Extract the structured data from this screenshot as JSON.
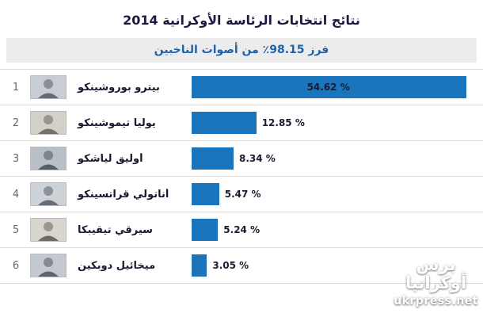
{
  "title": "نتائج انتخابات الرئاسة الأوكرانية 2014",
  "subtitle": "فرز 98.15٪ من أصوات الناخبين",
  "rows": [
    {
      "rank": "1",
      "name": "بيترو بوروشينكو",
      "percent_label": "54.62 %"
    },
    {
      "rank": "2",
      "name": "يوليا تيموشينكو",
      "percent_label": "12.85 %"
    },
    {
      "rank": "3",
      "name": "أوليق لياشكو",
      "percent_label": "8.34 %"
    },
    {
      "rank": "4",
      "name": "أناتولي قراتسينكو",
      "percent_label": "5.47 %"
    },
    {
      "rank": "5",
      "name": "سيرقي تيقيبكا",
      "percent_label": "5.24 %"
    },
    {
      "rank": "6",
      "name": "ميخائيل دوبكين",
      "percent_label": "3.05 %"
    }
  ],
  "watermark": {
    "logo_line1": "برس",
    "logo_line2": "أوكرانيا",
    "site": "ukrpress.net"
  },
  "colors": {
    "bar": "#1a75bc",
    "subtitle_bg": "#ececec",
    "subtitle_text": "#1e63ac",
    "title_text": "#1b1940"
  },
  "chart_data": {
    "type": "bar",
    "orientation": "horizontal",
    "title": "نتائج انتخابات الرئاسة الأوكرانية 2014",
    "subtitle": "فرز 98.15٪ من أصوات الناخبين",
    "categories": [
      "بيترو بوروشينكو",
      "يوليا تيموشينكو",
      "أوليق لياشكو",
      "أناتولي قراتسينكو",
      "سيرقي تيقيبكا",
      "ميخائيل دوبكين"
    ],
    "values": [
      54.62,
      12.85,
      8.34,
      5.47,
      5.24,
      3.05
    ],
    "unit": "%",
    "xlim": [
      0,
      56
    ],
    "grid": "row-separators",
    "legend": "none",
    "bar_color": "#1a75bc"
  }
}
